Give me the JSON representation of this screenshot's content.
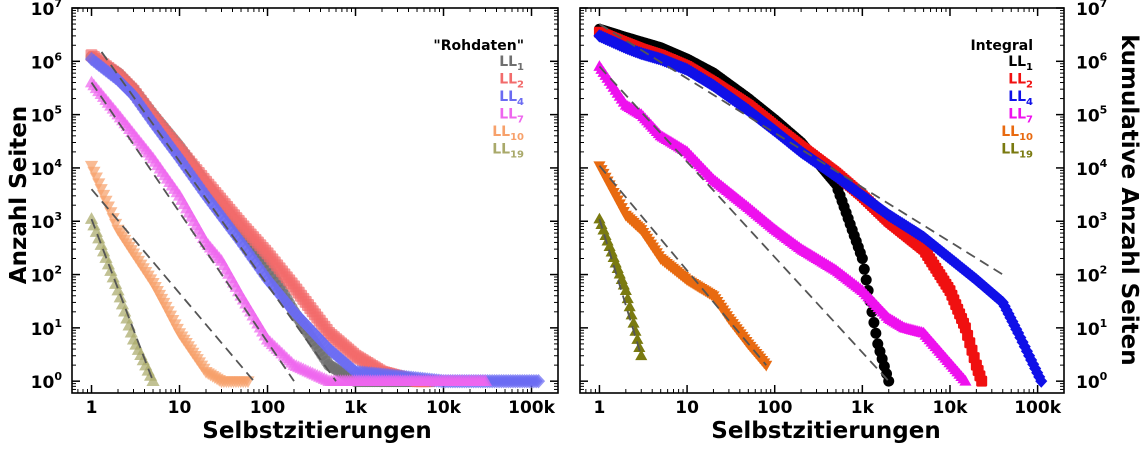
{
  "chart_data": [
    {
      "type": "scatter",
      "xscale": "log",
      "yscale": "log",
      "xlim": [
        0.6,
        200000
      ],
      "ylim": [
        0.6,
        10000000
      ],
      "xticks": [
        1,
        10,
        100,
        1000,
        10000,
        100000
      ],
      "xtick_labels": [
        "1",
        "10",
        "100",
        "1k",
        "10k",
        "100k"
      ],
      "yticks": [
        1,
        10,
        100,
        1000,
        10000,
        100000,
        1000000,
        10000000
      ],
      "ytick_bases": [
        "10",
        "10",
        "10",
        "10",
        "10",
        "10",
        "10",
        "10"
      ],
      "ytick_exps": [
        "0",
        "1",
        "2",
        "3",
        "4",
        "5",
        "6",
        "7"
      ],
      "xlabel": "Selbstzitierungen",
      "ylabel": "Anzahl Seiten",
      "legend_title": "\"Rohdaten\"",
      "legend_position": "top-right",
      "series": [
        {
          "name": "LL",
          "sub": "1",
          "color": "#6f6f6f",
          "marker": "circle",
          "xmax": 5000,
          "points": [
            [
              1,
              1200000
            ],
            [
              2,
              600000
            ],
            [
              3,
              300000
            ],
            [
              5,
              100000
            ],
            [
              10,
              25000
            ],
            [
              20,
              5000
            ],
            [
              50,
              700
            ],
            [
              100,
              150
            ],
            [
              200,
              20
            ],
            [
              500,
              2
            ],
            [
              1000,
              1
            ],
            [
              2000,
              1
            ],
            [
              5000,
              1
            ]
          ],
          "fit": [
            [
              1.3,
              1500000
            ],
            [
              600,
              1
            ]
          ]
        },
        {
          "name": "LL",
          "sub": "2",
          "color": "#f26b6b",
          "marker": "square",
          "xmax": 7000,
          "points": [
            [
              1,
              1300000
            ],
            [
              2,
              550000
            ],
            [
              3,
              280000
            ],
            [
              5,
              90000
            ],
            [
              10,
              22000
            ],
            [
              20,
              5500
            ],
            [
              50,
              900
            ],
            [
              100,
              250
            ],
            [
              200,
              60
            ],
            [
              500,
              8
            ],
            [
              1000,
              3
            ],
            [
              2000,
              1.5
            ],
            [
              5000,
              1
            ],
            [
              7000,
              1
            ]
          ]
        },
        {
          "name": "LL",
          "sub": "4",
          "color": "#6b6bf2",
          "marker": "diamond",
          "xmax": 120000,
          "points": [
            [
              1,
              1100000
            ],
            [
              2,
              450000
            ],
            [
              3,
              230000
            ],
            [
              5,
              70000
            ],
            [
              10,
              15000
            ],
            [
              20,
              3000
            ],
            [
              50,
              400
            ],
            [
              100,
              80
            ],
            [
              200,
              20
            ],
            [
              500,
              4
            ],
            [
              1000,
              1.5
            ],
            [
              10000,
              1
            ],
            [
              120000,
              1
            ]
          ]
        },
        {
          "name": "LL",
          "sub": "7",
          "color": "#ee66ee",
          "marker": "triangle-up",
          "xmax": 30000,
          "points": [
            [
              1,
              400000
            ],
            [
              2,
              100000
            ],
            [
              5,
              15000
            ],
            [
              10,
              3000
            ],
            [
              20,
              400
            ],
            [
              30,
              180
            ],
            [
              50,
              40
            ],
            [
              100,
              6
            ],
            [
              200,
              2
            ],
            [
              500,
              1
            ],
            [
              2000,
              1
            ],
            [
              30000,
              1
            ]
          ]
        },
        {
          "name": "LL",
          "sub": "10",
          "color": "#f7a16b",
          "marker": "triangle-down",
          "xmax": 60,
          "points": [
            [
              1,
              11000
            ],
            [
              2,
              700
            ],
            [
              3,
              250
            ],
            [
              5,
              70
            ],
            [
              7,
              25
            ],
            [
              10,
              8
            ],
            [
              15,
              3
            ],
            [
              20,
              1.5
            ],
            [
              30,
              1
            ],
            [
              60,
              1
            ]
          ],
          "fit": [
            [
              1,
              4000
            ],
            [
              70,
              1
            ]
          ]
        },
        {
          "name": "LL",
          "sub": "19",
          "color": "#a9a96a",
          "marker": "triangle-up",
          "xmax": 5,
          "points": [
            [
              1,
              1100
            ],
            [
              2,
              50
            ],
            [
              3,
              6
            ],
            [
              5,
              1
            ]
          ],
          "fit": [
            [
              1,
              1100
            ],
            [
              5,
              1
            ]
          ]
        }
      ],
      "extra_fits": [
        [
          [
            1,
            400000
          ],
          [
            200,
            1
          ]
        ]
      ]
    },
    {
      "type": "scatter",
      "xscale": "log",
      "yscale": "log",
      "xlim": [
        0.6,
        200000
      ],
      "ylim": [
        0.6,
        10000000
      ],
      "xticks": [
        1,
        10,
        100,
        1000,
        10000,
        100000
      ],
      "xtick_labels": [
        "1",
        "10",
        "100",
        "1k",
        "10k",
        "100k"
      ],
      "yticks": [
        1,
        10,
        100,
        1000,
        10000,
        100000,
        1000000,
        10000000
      ],
      "ytick_bases": [
        "10",
        "10",
        "10",
        "10",
        "10",
        "10",
        "10",
        "10"
      ],
      "ytick_exps": [
        "0",
        "1",
        "2",
        "3",
        "4",
        "5",
        "6",
        "7"
      ],
      "xlabel": "Selbstzitierungen",
      "ylabel": "kumulative Anzahl Seiten",
      "legend_title": "Integral",
      "legend_position": "top-right",
      "series": [
        {
          "name": "LL",
          "sub": "1",
          "color": "#000000",
          "marker": "circle",
          "points": [
            [
              1,
              4000000
            ],
            [
              2,
              2800000
            ],
            [
              3,
              2300000
            ],
            [
              5,
              1800000
            ],
            [
              10,
              1100000
            ],
            [
              20,
              600000
            ],
            [
              50,
              200000
            ],
            [
              100,
              80000
            ],
            [
              200,
              30000
            ],
            [
              500,
              5000
            ],
            [
              1000,
              200
            ],
            [
              1500,
              5
            ],
            [
              2000,
              1
            ]
          ]
        },
        {
          "name": "LL",
          "sub": "2",
          "color": "#f01010",
          "marker": "square",
          "points": [
            [
              1,
              3500000
            ],
            [
              2,
              2200000
            ],
            [
              3,
              1700000
            ],
            [
              5,
              1300000
            ],
            [
              10,
              800000
            ],
            [
              20,
              400000
            ],
            [
              50,
              150000
            ],
            [
              100,
              60000
            ],
            [
              200,
              25000
            ],
            [
              500,
              8000
            ],
            [
              1000,
              3000
            ],
            [
              2000,
              1000
            ],
            [
              5000,
              300
            ],
            [
              10000,
              50
            ],
            [
              15000,
              10
            ],
            [
              20000,
              2
            ],
            [
              23000,
              1
            ]
          ]
        },
        {
          "name": "LL",
          "sub": "4",
          "color": "#1010e8",
          "marker": "diamond",
          "points": [
            [
              1,
              3000000
            ],
            [
              2,
              1800000
            ],
            [
              3,
              1400000
            ],
            [
              5,
              1100000
            ],
            [
              10,
              700000
            ],
            [
              20,
              350000
            ],
            [
              50,
              120000
            ],
            [
              100,
              50000
            ],
            [
              200,
              20000
            ],
            [
              500,
              7000
            ],
            [
              1000,
              3000
            ],
            [
              2000,
              1300
            ],
            [
              5000,
              500
            ],
            [
              10000,
              200
            ],
            [
              20000,
              80
            ],
            [
              40000,
              30
            ],
            [
              60000,
              8
            ],
            [
              80000,
              3
            ],
            [
              110000,
              1
            ]
          ]
        },
        {
          "name": "LL",
          "sub": "7",
          "color": "#ee10ee",
          "marker": "triangle-up",
          "points": [
            [
              1,
              800000
            ],
            [
              2,
              150000
            ],
            [
              3,
              100000
            ],
            [
              5,
              40000
            ],
            [
              10,
              20000
            ],
            [
              20,
              6000
            ],
            [
              50,
              1800
            ],
            [
              100,
              700
            ],
            [
              200,
              300
            ],
            [
              500,
              120
            ],
            [
              1000,
              50
            ],
            [
              2000,
              15
            ],
            [
              3000,
              10
            ],
            [
              5000,
              8
            ],
            [
              15000,
              1
            ]
          ]
        },
        {
          "name": "LL",
          "sub": "10",
          "color": "#e86a10",
          "marker": "triangle-down",
          "points": [
            [
              1,
              11000
            ],
            [
              2,
              1300
            ],
            [
              3,
              700
            ],
            [
              5,
              200
            ],
            [
              10,
              80
            ],
            [
              20,
              40
            ],
            [
              30,
              15
            ],
            [
              50,
              5
            ],
            [
              80,
              2
            ]
          ]
        },
        {
          "name": "LL",
          "sub": "19",
          "color": "#7a7a10",
          "marker": "triangle-up",
          "points": [
            [
              1,
              1100
            ],
            [
              2,
              50
            ],
            [
              3,
              3
            ]
          ]
        }
      ],
      "fits": [
        [
          [
            1,
            5000000
          ],
          [
            40000,
            100
          ]
        ],
        [
          [
            1,
            800000
          ],
          [
            2000,
            1
          ]
        ],
        [
          [
            1,
            11000
          ],
          [
            80,
            2
          ]
        ],
        [
          [
            1,
            1100
          ],
          [
            3,
            3
          ]
        ]
      ]
    }
  ]
}
